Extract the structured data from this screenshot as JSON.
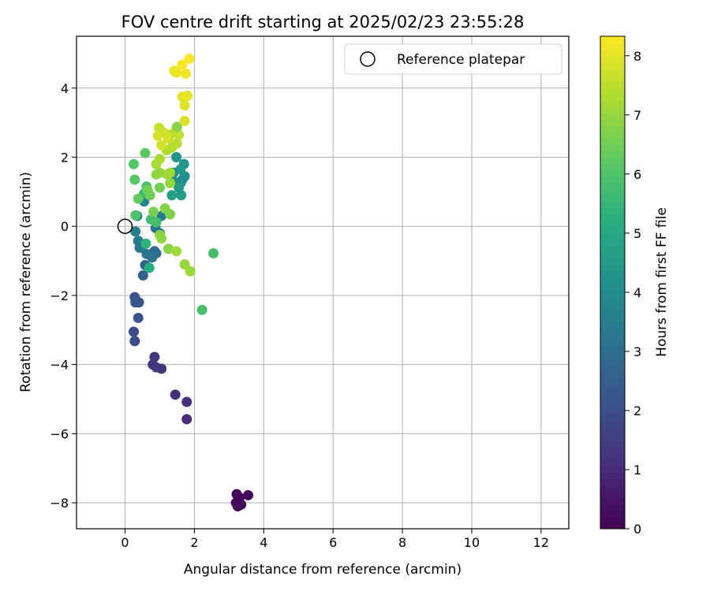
{
  "chart_data": {
    "type": "scatter",
    "title": "FOV centre drift starting at 2025/02/23 23:55:28",
    "xlabel": "Angular distance from reference (arcmin)",
    "ylabel": "Rotation from reference (arcmin)",
    "xlim": [
      -1.4,
      12.8
    ],
    "ylim": [
      -8.75,
      5.5
    ],
    "xticks": [
      0,
      2,
      4,
      6,
      8,
      10,
      12
    ],
    "yticks": [
      -8,
      -6,
      -4,
      -2,
      0,
      2,
      4
    ],
    "grid": true,
    "legend": {
      "position": "top-right",
      "entries": [
        "Reference platepar"
      ]
    },
    "reference_point": {
      "x": 0,
      "y": 0
    },
    "colorbar": {
      "label": "Hours from first FF file",
      "range": [
        0,
        8.33
      ],
      "ticks": [
        0,
        1,
        2,
        3,
        4,
        5,
        6,
        7,
        8
      ],
      "colormap": "viridis"
    },
    "points": [
      {
        "x": 3.22,
        "y": -7.75,
        "c": 0.05
      },
      {
        "x": 3.55,
        "y": -7.78,
        "c": 0.1
      },
      {
        "x": 3.2,
        "y": -8.0,
        "c": 0.08
      },
      {
        "x": 3.35,
        "y": -8.05,
        "c": 0.12
      },
      {
        "x": 3.25,
        "y": -8.1,
        "c": 0.15
      },
      {
        "x": 3.3,
        "y": -7.85,
        "c": 0.1
      },
      {
        "x": 1.78,
        "y": -5.58,
        "c": 1.0
      },
      {
        "x": 1.78,
        "y": -5.08,
        "c": 1.05
      },
      {
        "x": 1.45,
        "y": -4.87,
        "c": 1.1
      },
      {
        "x": 1.05,
        "y": -4.12,
        "c": 1.2
      },
      {
        "x": 0.8,
        "y": -4.0,
        "c": 1.25
      },
      {
        "x": 0.85,
        "y": -3.78,
        "c": 1.3
      },
      {
        "x": 0.9,
        "y": -4.08,
        "c": 1.35
      },
      {
        "x": 0.25,
        "y": -3.05,
        "c": 1.9
      },
      {
        "x": 0.28,
        "y": -3.32,
        "c": 1.95
      },
      {
        "x": 0.38,
        "y": -2.65,
        "c": 2.05
      },
      {
        "x": 0.28,
        "y": -2.05,
        "c": 2.1
      },
      {
        "x": 0.3,
        "y": -2.2,
        "c": 2.15
      },
      {
        "x": 0.4,
        "y": -2.2,
        "c": 2.2
      },
      {
        "x": 0.52,
        "y": -1.42,
        "c": 2.6
      },
      {
        "x": 0.58,
        "y": -1.12,
        "c": 2.7
      },
      {
        "x": 0.72,
        "y": -0.82,
        "c": 2.9
      },
      {
        "x": 0.85,
        "y": -0.72,
        "c": 2.95
      },
      {
        "x": 0.9,
        "y": -0.78,
        "c": 3.0
      },
      {
        "x": 0.78,
        "y": -0.9,
        "c": 3.1
      },
      {
        "x": 0.62,
        "y": -0.8,
        "c": 3.15
      },
      {
        "x": 0.42,
        "y": -0.62,
        "c": 3.3
      },
      {
        "x": 0.38,
        "y": -0.42,
        "c": 3.4
      },
      {
        "x": 0.5,
        "y": -0.55,
        "c": 3.5
      },
      {
        "x": 0.3,
        "y": -0.15,
        "c": 3.6
      },
      {
        "x": 0.35,
        "y": 0.3,
        "c": 3.7
      },
      {
        "x": 0.55,
        "y": 0.72,
        "c": 3.75
      },
      {
        "x": 0.88,
        "y": -0.05,
        "c": 3.2
      },
      {
        "x": 1.0,
        "y": -0.2,
        "c": 3.3
      },
      {
        "x": 1.05,
        "y": 0.3,
        "c": 3.4
      },
      {
        "x": 1.4,
        "y": 1.55,
        "c": 3.8
      },
      {
        "x": 1.38,
        "y": 1.32,
        "c": 3.9
      },
      {
        "x": 1.6,
        "y": 1.25,
        "c": 4.0
      },
      {
        "x": 1.65,
        "y": 1.35,
        "c": 4.05
      },
      {
        "x": 1.72,
        "y": 1.45,
        "c": 4.1
      },
      {
        "x": 1.7,
        "y": 1.8,
        "c": 4.3
      },
      {
        "x": 1.6,
        "y": 1.65,
        "c": 4.4
      },
      {
        "x": 1.48,
        "y": 2.0,
        "c": 4.2
      },
      {
        "x": 1.55,
        "y": 1.12,
        "c": 4.5
      },
      {
        "x": 1.62,
        "y": 0.9,
        "c": 4.6
      },
      {
        "x": 1.35,
        "y": 0.9,
        "c": 4.7
      },
      {
        "x": 0.7,
        "y": -1.2,
        "c": 5.2
      },
      {
        "x": 0.6,
        "y": -0.5,
        "c": 5.4
      },
      {
        "x": 0.55,
        "y": 0.95,
        "c": 5.6
      },
      {
        "x": 0.75,
        "y": 0.2,
        "c": 5.7
      },
      {
        "x": 0.9,
        "y": 0.12,
        "c": 5.8
      },
      {
        "x": 0.62,
        "y": 1.15,
        "c": 5.9
      },
      {
        "x": 0.3,
        "y": 0.32,
        "c": 6.0
      },
      {
        "x": 2.55,
        "y": -0.78,
        "c": 5.75
      },
      {
        "x": 2.22,
        "y": -2.42,
        "c": 5.85
      },
      {
        "x": 0.25,
        "y": 1.8,
        "c": 6.1
      },
      {
        "x": 0.28,
        "y": 1.35,
        "c": 6.15
      },
      {
        "x": 0.58,
        "y": 2.12,
        "c": 6.2
      },
      {
        "x": 0.38,
        "y": 0.8,
        "c": 6.3
      },
      {
        "x": 0.72,
        "y": 0.9,
        "c": 6.4
      },
      {
        "x": 0.65,
        "y": 1.05,
        "c": 6.5
      },
      {
        "x": 0.82,
        "y": 0.42,
        "c": 6.6
      },
      {
        "x": 1.0,
        "y": 1.12,
        "c": 6.5
      },
      {
        "x": 1.3,
        "y": 0.35,
        "c": 6.7
      },
      {
        "x": 1.15,
        "y": 0.52,
        "c": 6.75
      },
      {
        "x": 1.25,
        "y": -0.65,
        "c": 6.8
      },
      {
        "x": 1.0,
        "y": -0.25,
        "c": 6.85
      },
      {
        "x": 1.05,
        "y": -0.35,
        "c": 6.9
      },
      {
        "x": 1.72,
        "y": -1.1,
        "c": 7.0
      },
      {
        "x": 1.88,
        "y": -1.3,
        "c": 7.05
      },
      {
        "x": 1.48,
        "y": -0.72,
        "c": 7.1
      },
      {
        "x": 0.9,
        "y": 1.5,
        "c": 6.9
      },
      {
        "x": 1.0,
        "y": 1.55,
        "c": 6.95
      },
      {
        "x": 1.3,
        "y": 1.25,
        "c": 7.0
      },
      {
        "x": 1.22,
        "y": 1.5,
        "c": 7.1
      },
      {
        "x": 1.3,
        "y": 1.55,
        "c": 7.15
      },
      {
        "x": 0.9,
        "y": 1.8,
        "c": 7.2
      },
      {
        "x": 1.0,
        "y": 1.95,
        "c": 7.25
      },
      {
        "x": 1.2,
        "y": 2.2,
        "c": 7.3
      },
      {
        "x": 1.35,
        "y": 2.28,
        "c": 7.35
      },
      {
        "x": 1.5,
        "y": 2.4,
        "c": 7.4
      },
      {
        "x": 1.3,
        "y": 2.65,
        "c": 7.45
      },
      {
        "x": 1.45,
        "y": 2.75,
        "c": 7.5
      },
      {
        "x": 1.55,
        "y": 2.65,
        "c": 7.55
      },
      {
        "x": 1.5,
        "y": 2.88,
        "c": 6.8
      },
      {
        "x": 0.98,
        "y": 2.85,
        "c": 7.6
      },
      {
        "x": 1.1,
        "y": 2.72,
        "c": 7.7
      },
      {
        "x": 1.25,
        "y": 2.55,
        "c": 7.75
      },
      {
        "x": 1.05,
        "y": 2.35,
        "c": 7.8
      },
      {
        "x": 0.95,
        "y": 2.62,
        "c": 7.85
      },
      {
        "x": 1.72,
        "y": 3.05,
        "c": 7.9
      },
      {
        "x": 1.72,
        "y": 3.5,
        "c": 7.95
      },
      {
        "x": 1.65,
        "y": 3.75,
        "c": 8.0
      },
      {
        "x": 1.8,
        "y": 3.78,
        "c": 8.05
      },
      {
        "x": 1.42,
        "y": 4.5,
        "c": 8.1
      },
      {
        "x": 1.48,
        "y": 4.45,
        "c": 8.15
      },
      {
        "x": 1.75,
        "y": 4.42,
        "c": 8.2
      },
      {
        "x": 1.65,
        "y": 4.68,
        "c": 8.25
      },
      {
        "x": 1.85,
        "y": 4.85,
        "c": 8.3
      }
    ]
  }
}
